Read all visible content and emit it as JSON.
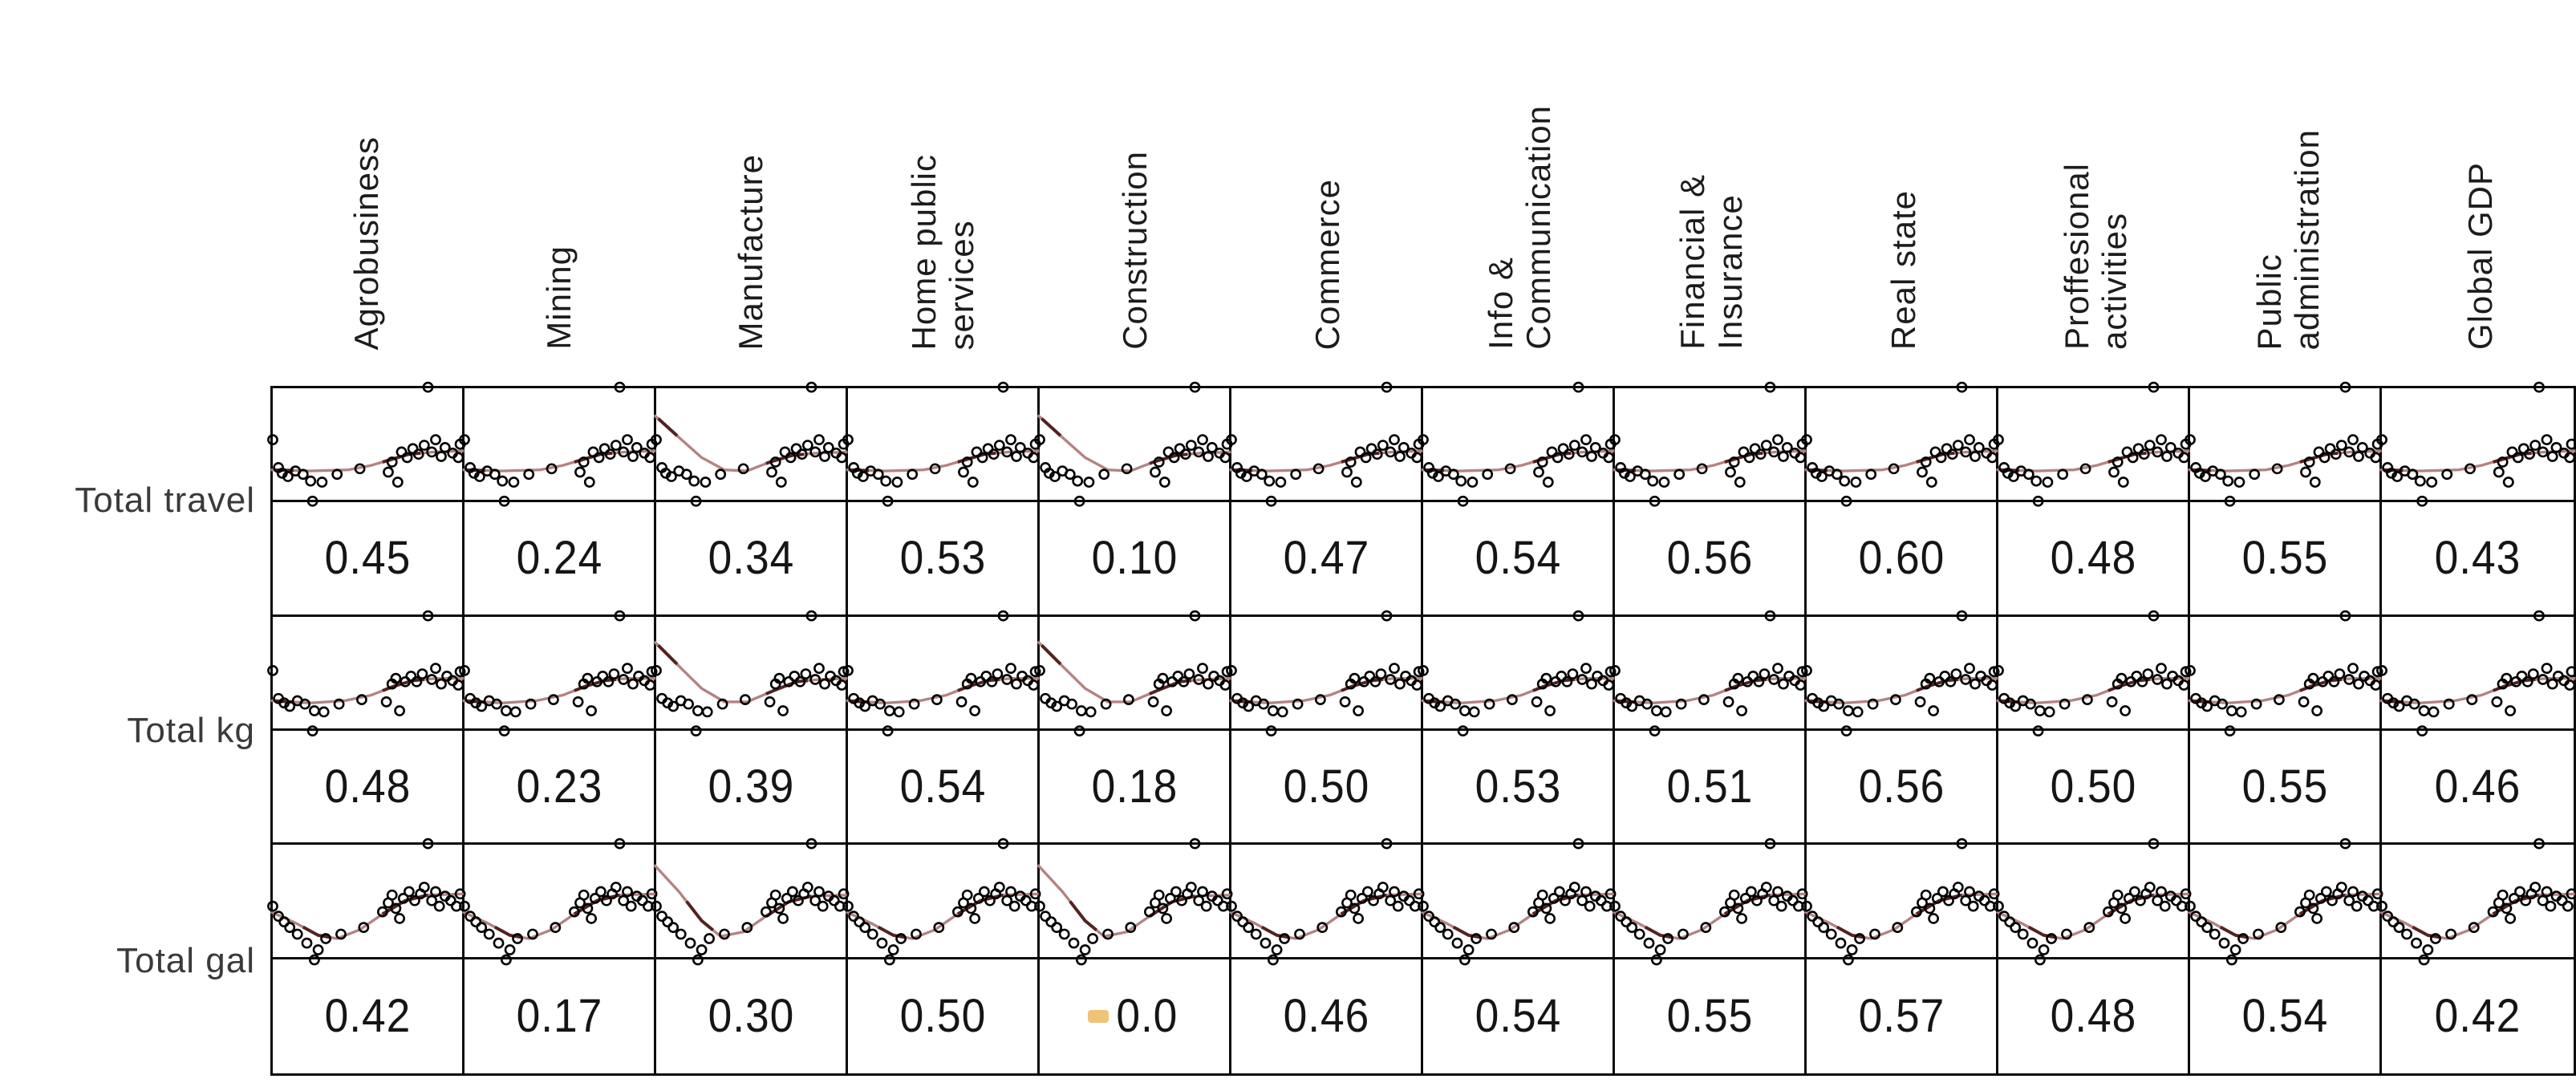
{
  "chart_data": {
    "type": "scatter",
    "subtype": "scatterplot-correlation-matrix",
    "title": "",
    "legend": "none",
    "grid": "on",
    "columns": [
      {
        "label": "Agrobusiness",
        "curve": "default"
      },
      {
        "label": "Mining",
        "curve": "default"
      },
      {
        "label": "Manufacture",
        "curve": "desc"
      },
      {
        "label": "Home public\nservices",
        "curve": "default"
      },
      {
        "label": "Construction",
        "curve": "desc"
      },
      {
        "label": "Commerce",
        "curve": "default"
      },
      {
        "label": "Info &\nCommunication",
        "curve": "default"
      },
      {
        "label": "Financial &\nInsurance",
        "curve": "default"
      },
      {
        "label": "Real state",
        "curve": "default"
      },
      {
        "label": "Proffesional\nactivities",
        "curve": "default"
      },
      {
        "label": "Public\nadministration",
        "curve": "default"
      },
      {
        "label": "Global GDP",
        "curve": "default"
      }
    ],
    "rows": [
      {
        "label": "Total travel",
        "key": "travel",
        "correlations": [
          "0.45",
          "0.24",
          "0.34",
          "0.53",
          "0.10",
          "0.47",
          "0.54",
          "0.56",
          "0.60",
          "0.48",
          "0.55",
          "0.43"
        ]
      },
      {
        "label": "Total kg",
        "key": "kg",
        "correlations": [
          "0.48",
          "0.23",
          "0.39",
          "0.54",
          "0.18",
          "0.50",
          "0.53",
          "0.51",
          "0.56",
          "0.50",
          "0.55",
          "0.46"
        ]
      },
      {
        "label": "Total gal",
        "key": "gal",
        "correlations": [
          "0.42",
          "0.17",
          "0.30",
          "0.50",
          "0.0",
          "0.46",
          "0.54",
          "0.55",
          "0.57",
          "0.48",
          "0.54",
          "0.42"
        ]
      }
    ],
    "scatter_templates": {
      "travel": {
        "points": [
          [
            0,
            46
          ],
          [
            3,
            71
          ],
          [
            5,
            76
          ],
          [
            8,
            79
          ],
          [
            12,
            74
          ],
          [
            16,
            77
          ],
          [
            20,
            83
          ],
          [
            21,
            101
          ],
          [
            26,
            84
          ],
          [
            34,
            77
          ],
          [
            46,
            72
          ],
          [
            61,
            75
          ],
          [
            63,
            66
          ],
          [
            66,
            84
          ],
          [
            68,
            57
          ],
          [
            71,
            62
          ],
          [
            74,
            54
          ],
          [
            77,
            59
          ],
          [
            80,
            51
          ],
          [
            82,
            -1
          ],
          [
            84,
            57
          ],
          [
            86,
            46
          ],
          [
            89,
            61
          ],
          [
            91,
            53
          ],
          [
            95,
            58
          ],
          [
            98,
            62
          ],
          [
            99,
            50
          ]
        ],
        "curves": {
          "default": [
            [
              -1,
              73
            ],
            [
              20,
              74
            ],
            [
              40,
              73
            ],
            [
              52,
              69
            ],
            [
              62,
              64
            ],
            [
              72,
              59
            ],
            [
              85,
              57
            ],
            [
              101,
              56
            ]
          ],
          "desc": [
            [
              -1,
              24
            ],
            [
              12,
              44
            ],
            [
              24,
              62
            ],
            [
              36,
              73
            ],
            [
              48,
              74
            ],
            [
              60,
              66
            ],
            [
              72,
              60
            ],
            [
              85,
              58
            ],
            [
              101,
              57
            ]
          ]
        },
        "dark_segments": [
          [
            1,
            11
          ],
          [
            58,
            78
          ]
        ]
      },
      "kg": {
        "points": [
          [
            0,
            48
          ],
          [
            3,
            73
          ],
          [
            6,
            77
          ],
          [
            9,
            80
          ],
          [
            13,
            75
          ],
          [
            17,
            78
          ],
          [
            21,
            102
          ],
          [
            22,
            84
          ],
          [
            27,
            85
          ],
          [
            35,
            78
          ],
          [
            47,
            74
          ],
          [
            60,
            76
          ],
          [
            63,
            60
          ],
          [
            65,
            55
          ],
          [
            67,
            84
          ],
          [
            70,
            58
          ],
          [
            73,
            53
          ],
          [
            76,
            58
          ],
          [
            79,
            51
          ],
          [
            82,
            -1
          ],
          [
            84,
            56
          ],
          [
            86,
            46
          ],
          [
            89,
            60
          ],
          [
            92,
            53
          ],
          [
            95,
            57
          ],
          [
            98,
            61
          ],
          [
            99,
            49
          ]
        ],
        "curves": {
          "default": [
            [
              -1,
              75
            ],
            [
              20,
              77
            ],
            [
              38,
              75
            ],
            [
              52,
              70
            ],
            [
              64,
              62
            ],
            [
              74,
              57
            ],
            [
              86,
              55
            ],
            [
              101,
              55
            ]
          ],
          "desc": [
            [
              -1,
              22
            ],
            [
              12,
              44
            ],
            [
              24,
              64
            ],
            [
              36,
              76
            ],
            [
              48,
              76
            ],
            [
              62,
              66
            ],
            [
              74,
              58
            ],
            [
              86,
              56
            ],
            [
              101,
              55
            ]
          ]
        },
        "dark_segments": [
          [
            1,
            11
          ],
          [
            58,
            80
          ]
        ]
      },
      "gal": {
        "points": [
          [
            0,
            55
          ],
          [
            3,
            64
          ],
          [
            6,
            69
          ],
          [
            9,
            74
          ],
          [
            13,
            80
          ],
          [
            18,
            88
          ],
          [
            22,
            103
          ],
          [
            24,
            94
          ],
          [
            28,
            84
          ],
          [
            36,
            80
          ],
          [
            48,
            74
          ],
          [
            58,
            60
          ],
          [
            61,
            52
          ],
          [
            63,
            45
          ],
          [
            65,
            57
          ],
          [
            67,
            66
          ],
          [
            69,
            48
          ],
          [
            72,
            42
          ],
          [
            75,
            50
          ],
          [
            78,
            44
          ],
          [
            80,
            38
          ],
          [
            82,
            -1
          ],
          [
            84,
            50
          ],
          [
            86,
            42
          ],
          [
            88,
            55
          ],
          [
            91,
            46
          ],
          [
            94,
            50
          ],
          [
            97,
            55
          ],
          [
            99,
            44
          ]
        ],
        "curves": {
          "default": [
            [
              -1,
              60
            ],
            [
              12,
              70
            ],
            [
              24,
              81
            ],
            [
              34,
              84
            ],
            [
              46,
              76
            ],
            [
              58,
              62
            ],
            [
              70,
              50
            ],
            [
              82,
              45
            ],
            [
              101,
              44
            ]
          ],
          "desc": [
            [
              -1,
              18
            ],
            [
              12,
              42
            ],
            [
              24,
              68
            ],
            [
              34,
              82
            ],
            [
              46,
              78
            ],
            [
              58,
              64
            ],
            [
              70,
              51
            ],
            [
              82,
              46
            ],
            [
              101,
              45
            ]
          ]
        },
        "dark_segments": [
          [
            16,
            30
          ],
          [
            58,
            82
          ]
        ]
      }
    },
    "special_marker": {
      "row_index": 2,
      "col_index": 4,
      "description": "small orange tick left of value"
    },
    "style": {
      "background": "#ffffff",
      "grid_line_color": "#0a0a0a",
      "point_stroke_color": "#000000",
      "curve_color": "#b38383",
      "curve_dark_color": "#542222",
      "header_text_color": "#1c1c1c",
      "row_label_color": "#3a3a3a",
      "value_text_color": "#151515",
      "marker_color": "#e8b04a"
    }
  }
}
